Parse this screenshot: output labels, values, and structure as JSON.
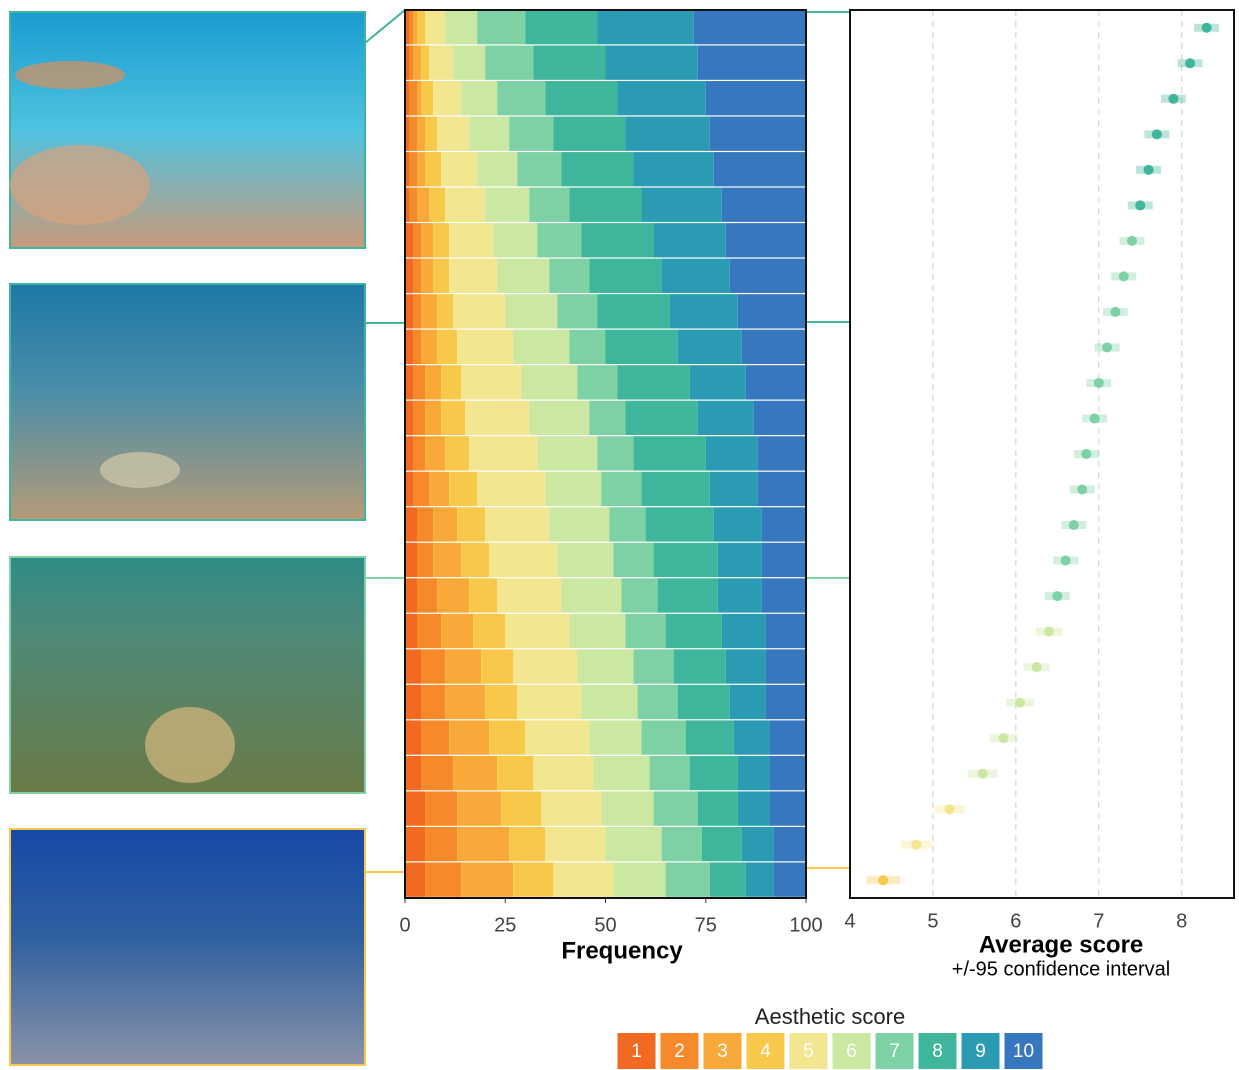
{
  "chart_data": [
    {
      "type": "bar",
      "stacked": true,
      "orientation": "horizontal",
      "xlabel": "Frequency",
      "xlim": [
        0,
        100
      ],
      "xticks": [
        0,
        25,
        50,
        75,
        100
      ],
      "legend_title": "Aesthetic score",
      "series": [
        {
          "name": "1",
          "color": "#f26a21",
          "values": [
            1,
            1,
            1,
            1,
            1,
            1,
            2,
            2,
            2,
            2,
            2,
            2,
            2,
            2,
            3,
            3,
            3,
            3,
            4,
            4,
            4,
            4,
            5,
            5,
            5
          ]
        },
        {
          "name": "2",
          "color": "#f6892a",
          "values": [
            1,
            1,
            2,
            2,
            2,
            2,
            2,
            2,
            2,
            2,
            3,
            3,
            3,
            4,
            4,
            4,
            5,
            6,
            6,
            6,
            7,
            8,
            8,
            8,
            9
          ]
        },
        {
          "name": "3",
          "color": "#f9a93a",
          "values": [
            1,
            2,
            1,
            2,
            2,
            3,
            3,
            3,
            4,
            4,
            4,
            4,
            5,
            5,
            6,
            7,
            8,
            8,
            9,
            10,
            10,
            11,
            11,
            13,
            13
          ]
        },
        {
          "name": "4",
          "color": "#f8c84a",
          "values": [
            2,
            2,
            3,
            3,
            4,
            4,
            4,
            4,
            4,
            5,
            5,
            6,
            6,
            7,
            7,
            7,
            7,
            8,
            8,
            8,
            9,
            9,
            10,
            9,
            10
          ]
        },
        {
          "name": "5",
          "color": "#f3e690",
          "values": [
            5,
            6,
            7,
            8,
            9,
            10,
            11,
            12,
            13,
            14,
            15,
            16,
            17,
            17,
            16,
            17,
            16,
            16,
            16,
            16,
            16,
            15,
            15,
            15,
            15
          ]
        },
        {
          "name": "6",
          "color": "#cbe8a2",
          "values": [
            8,
            8,
            9,
            10,
            10,
            11,
            11,
            13,
            13,
            14,
            14,
            15,
            15,
            14,
            15,
            14,
            15,
            14,
            14,
            14,
            13,
            14,
            13,
            14,
            13
          ]
        },
        {
          "name": "7",
          "color": "#7dd1a4",
          "values": [
            12,
            12,
            12,
            11,
            11,
            10,
            11,
            10,
            10,
            9,
            10,
            9,
            9,
            10,
            9,
            10,
            9,
            10,
            10,
            10,
            11,
            10,
            11,
            10,
            11
          ]
        },
        {
          "name": "8",
          "color": "#3fb59b",
          "values": [
            18,
            18,
            18,
            18,
            18,
            18,
            18,
            18,
            18,
            18,
            18,
            18,
            18,
            17,
            17,
            16,
            15,
            14,
            13,
            13,
            12,
            12,
            10,
            10,
            9
          ]
        },
        {
          "name": "9",
          "color": "#2b9bb3",
          "values": [
            24,
            23,
            22,
            21,
            20,
            20,
            18,
            17,
            17,
            16,
            14,
            14,
            13,
            12,
            12,
            11,
            11,
            11,
            10,
            9,
            9,
            8,
            8,
            8,
            7
          ]
        },
        {
          "name": "10",
          "color": "#3677bd",
          "values": [
            28,
            27,
            25,
            24,
            23,
            21,
            20,
            19,
            17,
            16,
            15,
            13,
            12,
            12,
            11,
            11,
            11,
            10,
            10,
            10,
            9,
            9,
            9,
            8,
            8
          ]
        }
      ]
    },
    {
      "type": "scatter",
      "xlabel": "Average score",
      "subtitle": "+/-95 confidence interval",
      "xlim": [
        4,
        8.63
      ],
      "xticks": [
        4,
        5,
        6,
        7,
        8
      ],
      "grid": true,
      "values": [
        8.3,
        8.1,
        7.9,
        7.7,
        7.6,
        7.5,
        7.4,
        7.3,
        7.2,
        7.1,
        7.0,
        6.95,
        6.85,
        6.8,
        6.7,
        6.6,
        6.5,
        6.4,
        6.25,
        6.05,
        5.85,
        5.6,
        5.2,
        4.8,
        4.4
      ],
      "errors": [
        0.15,
        0.15,
        0.15,
        0.15,
        0.15,
        0.15,
        0.15,
        0.15,
        0.15,
        0.15,
        0.15,
        0.15,
        0.15,
        0.15,
        0.15,
        0.15,
        0.15,
        0.16,
        0.16,
        0.17,
        0.17,
        0.18,
        0.18,
        0.19,
        0.2
      ]
    }
  ]
}
